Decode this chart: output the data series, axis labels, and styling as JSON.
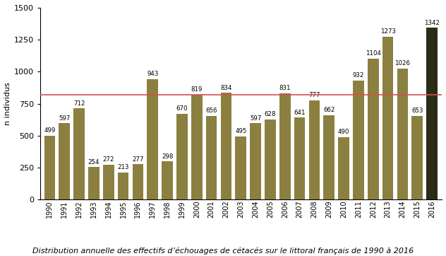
{
  "years": [
    1990,
    1991,
    1992,
    1993,
    1994,
    1995,
    1996,
    1997,
    1998,
    1999,
    2000,
    2001,
    2002,
    2003,
    2004,
    2005,
    2006,
    2007,
    2008,
    2009,
    2010,
    2011,
    2012,
    2013,
    2014,
    2015,
    2016
  ],
  "values": [
    499,
    597,
    712,
    254,
    272,
    213,
    277,
    943,
    298,
    670,
    819,
    656,
    834,
    495,
    597,
    628,
    831,
    641,
    777,
    662,
    490,
    932,
    1104,
    1273,
    1026,
    653,
    1342
  ],
  "bar_color_default": "#8B8040",
  "bar_color_2016": "#2B2B18",
  "reference_line_y": 820,
  "reference_line_color": "#D94F4F",
  "ylabel": "n individus",
  "ylim": [
    0,
    1500
  ],
  "yticks": [
    0,
    250,
    500,
    750,
    1000,
    1250,
    1500
  ],
  "caption": "Distribution annuelle des effectifs d’échouages de cétacés sur le littoral français de 1990 à 2016",
  "label_fontsize": 6.2,
  "axis_label_fontsize": 8,
  "caption_fontsize": 8,
  "xtick_fontsize": 7,
  "ytick_fontsize": 8,
  "background_color": "#FFFFFF"
}
